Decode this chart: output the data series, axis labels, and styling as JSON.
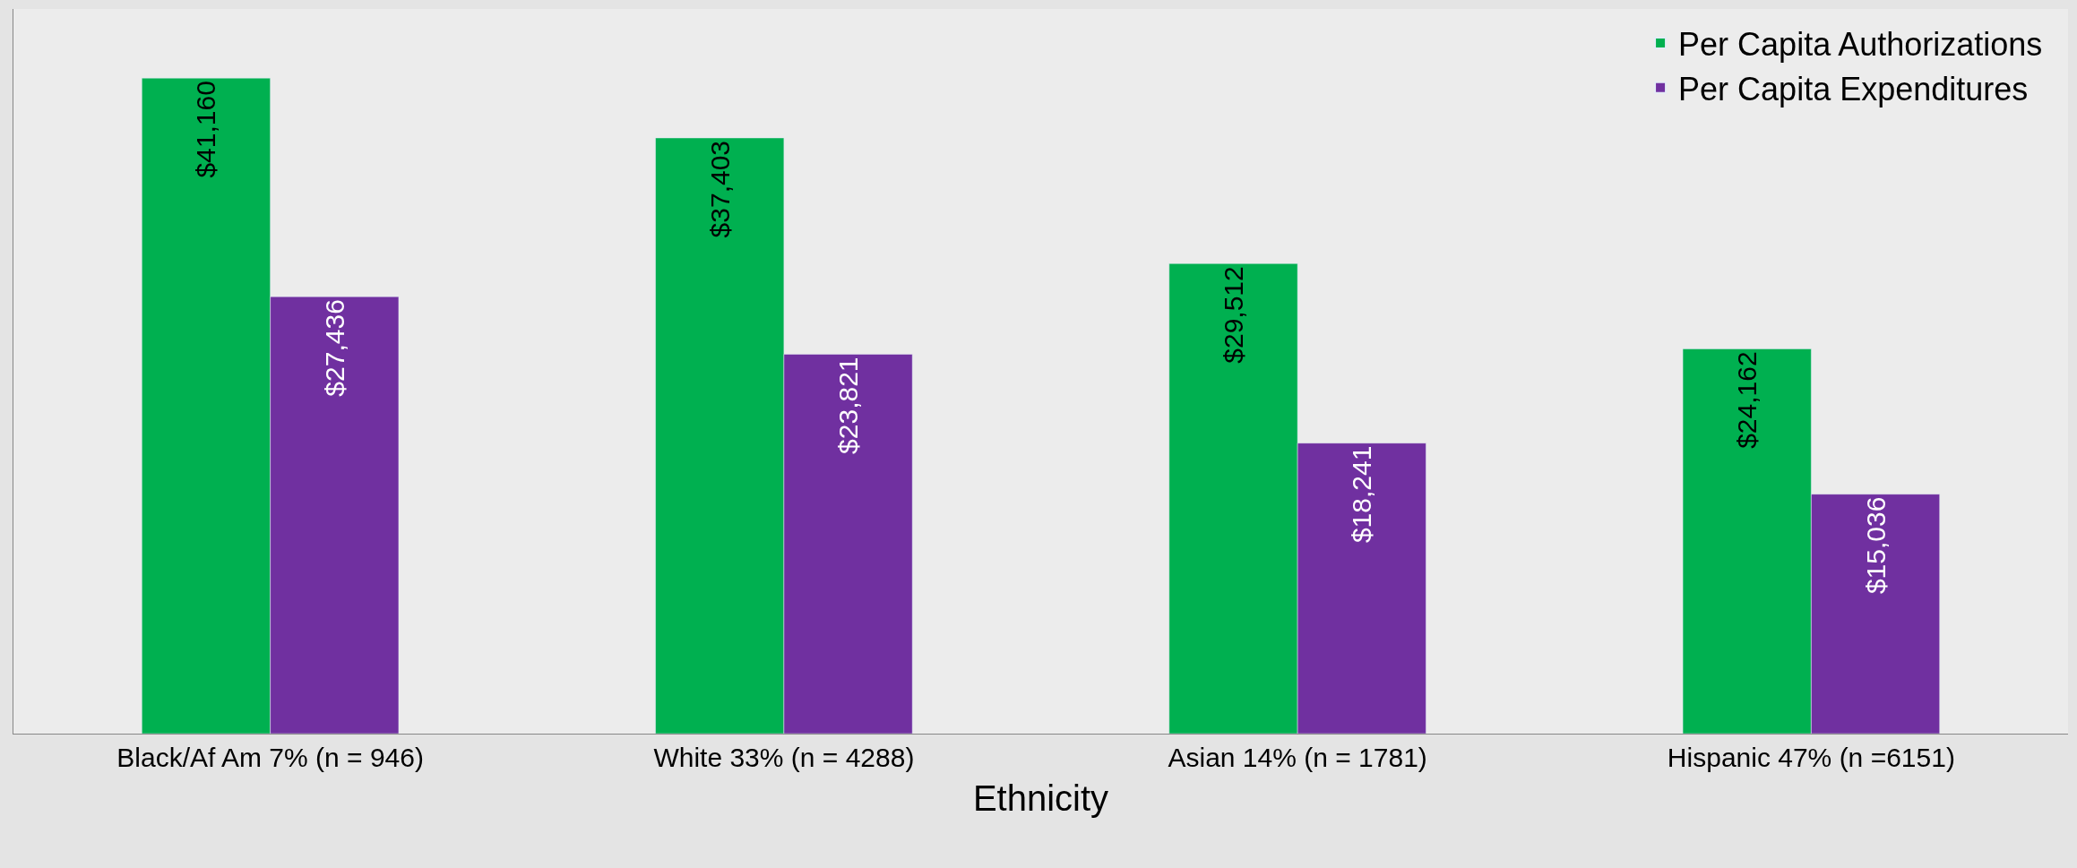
{
  "chart_data": {
    "type": "bar",
    "xlabel": "Ethnicity",
    "categories": [
      "Black/Af Am 7% (n = 946)",
      "White 33% (n = 4288)",
      "Asian 14% (n = 1781)",
      "Hispanic 47% (n =6151)"
    ],
    "series": [
      {
        "name": "Per Capita Authorizations",
        "color": "#00b050",
        "values": [
          41160,
          37403,
          29512,
          24162
        ],
        "value_labels": [
          "$41,160",
          "$37,403",
          "$29,512",
          "$24,162"
        ]
      },
      {
        "name": "Per Capita Expenditures",
        "color": "#7030a0",
        "values": [
          27436,
          23821,
          18241,
          15036
        ],
        "value_labels": [
          "$27,436",
          "$23,821",
          "$18,241",
          "$15,036"
        ]
      }
    ],
    "ylim": [
      0,
      45500
    ],
    "tick_labels": "x",
    "grid": false,
    "legend": "top right"
  }
}
